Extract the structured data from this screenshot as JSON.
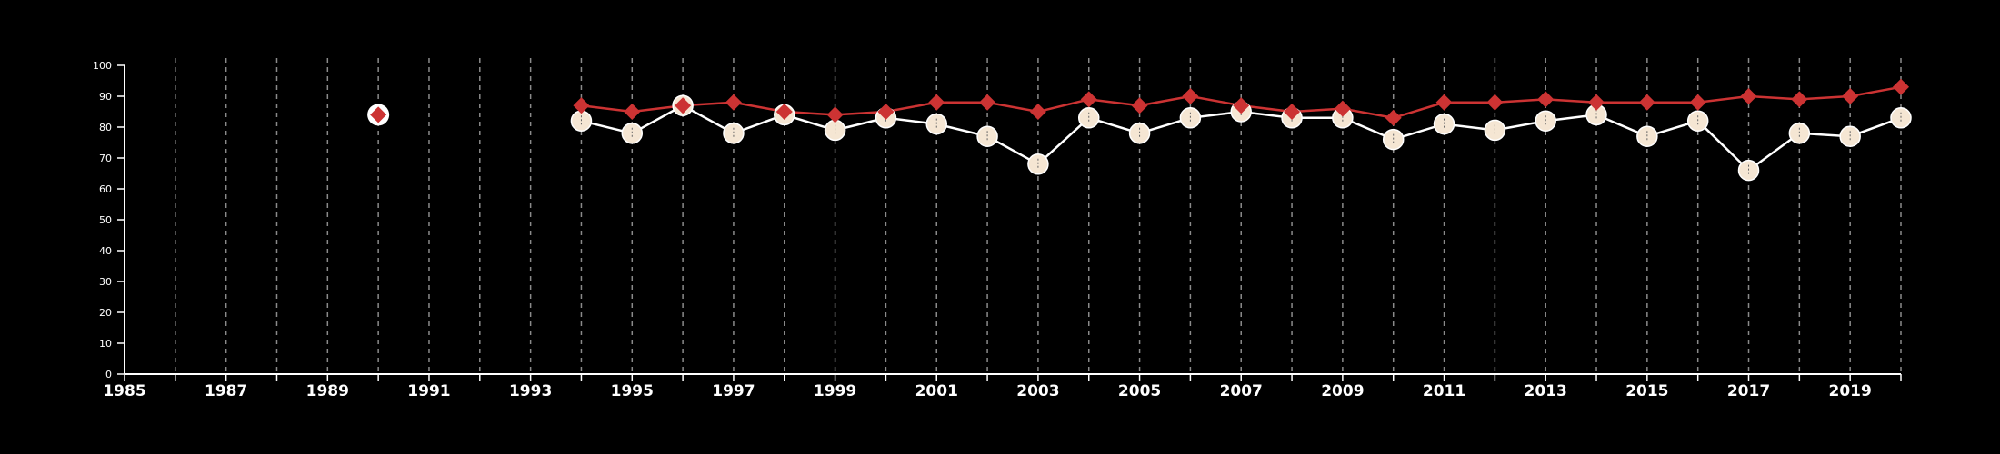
{
  "chart_data": {
    "type": "line",
    "title": "",
    "xlabel": "",
    "ylabel": "",
    "xlim": [
      1985,
      2020
    ],
    "ylim": [
      0,
      100
    ],
    "x_tick_labels": [
      "1985",
      "1987",
      "1989",
      "1991",
      "1993",
      "1995",
      "1997",
      "1999",
      "2001",
      "2003",
      "2005",
      "2007",
      "2009",
      "2011",
      "2013",
      "2015",
      "2017",
      "2019"
    ],
    "y_tick_labels": [
      "0",
      "10",
      "20",
      "30",
      "40",
      "50",
      "60",
      "70",
      "80",
      "90",
      "100"
    ],
    "grid": "vertical dashed lines at each year",
    "series": [
      {
        "marker": "diamond",
        "color": "#cc3333",
        "points": [
          [
            1990,
            84
          ],
          [
            1994,
            87
          ],
          [
            1995,
            85
          ],
          [
            1996,
            87
          ],
          [
            1997,
            88
          ],
          [
            1998,
            85
          ],
          [
            1999,
            84
          ],
          [
            2000,
            85
          ],
          [
            2001,
            88
          ],
          [
            2002,
            88
          ],
          [
            2003,
            85
          ],
          [
            2004,
            89
          ],
          [
            2005,
            87
          ],
          [
            2006,
            90
          ],
          [
            2007,
            87
          ],
          [
            2008,
            85
          ],
          [
            2009,
            86
          ],
          [
            2010,
            83
          ],
          [
            2011,
            88
          ],
          [
            2012,
            88
          ],
          [
            2013,
            89
          ],
          [
            2014,
            88
          ],
          [
            2015,
            88
          ],
          [
            2016,
            88
          ],
          [
            2017,
            90
          ],
          [
            2018,
            89
          ],
          [
            2019,
            90
          ],
          [
            2020,
            93
          ]
        ]
      },
      {
        "marker": "circle",
        "color": "#f5e6d3",
        "points": [
          [
            1994,
            82
          ],
          [
            1995,
            78
          ],
          [
            1996,
            87
          ],
          [
            1997,
            78
          ],
          [
            1998,
            84
          ],
          [
            1999,
            79
          ],
          [
            2000,
            83
          ],
          [
            2001,
            81
          ],
          [
            2002,
            77
          ],
          [
            2003,
            68
          ],
          [
            2004,
            83
          ],
          [
            2005,
            78
          ],
          [
            2006,
            83
          ],
          [
            2007,
            85
          ],
          [
            2008,
            83
          ],
          [
            2009,
            83
          ],
          [
            2010,
            76
          ],
          [
            2011,
            81
          ],
          [
            2012,
            79
          ],
          [
            2013,
            82
          ],
          [
            2014,
            84
          ],
          [
            2015,
            77
          ],
          [
            2016,
            82
          ],
          [
            2017,
            66
          ],
          [
            2018,
            78
          ],
          [
            2019,
            77
          ],
          [
            2020,
            83
          ]
        ]
      }
    ]
  }
}
